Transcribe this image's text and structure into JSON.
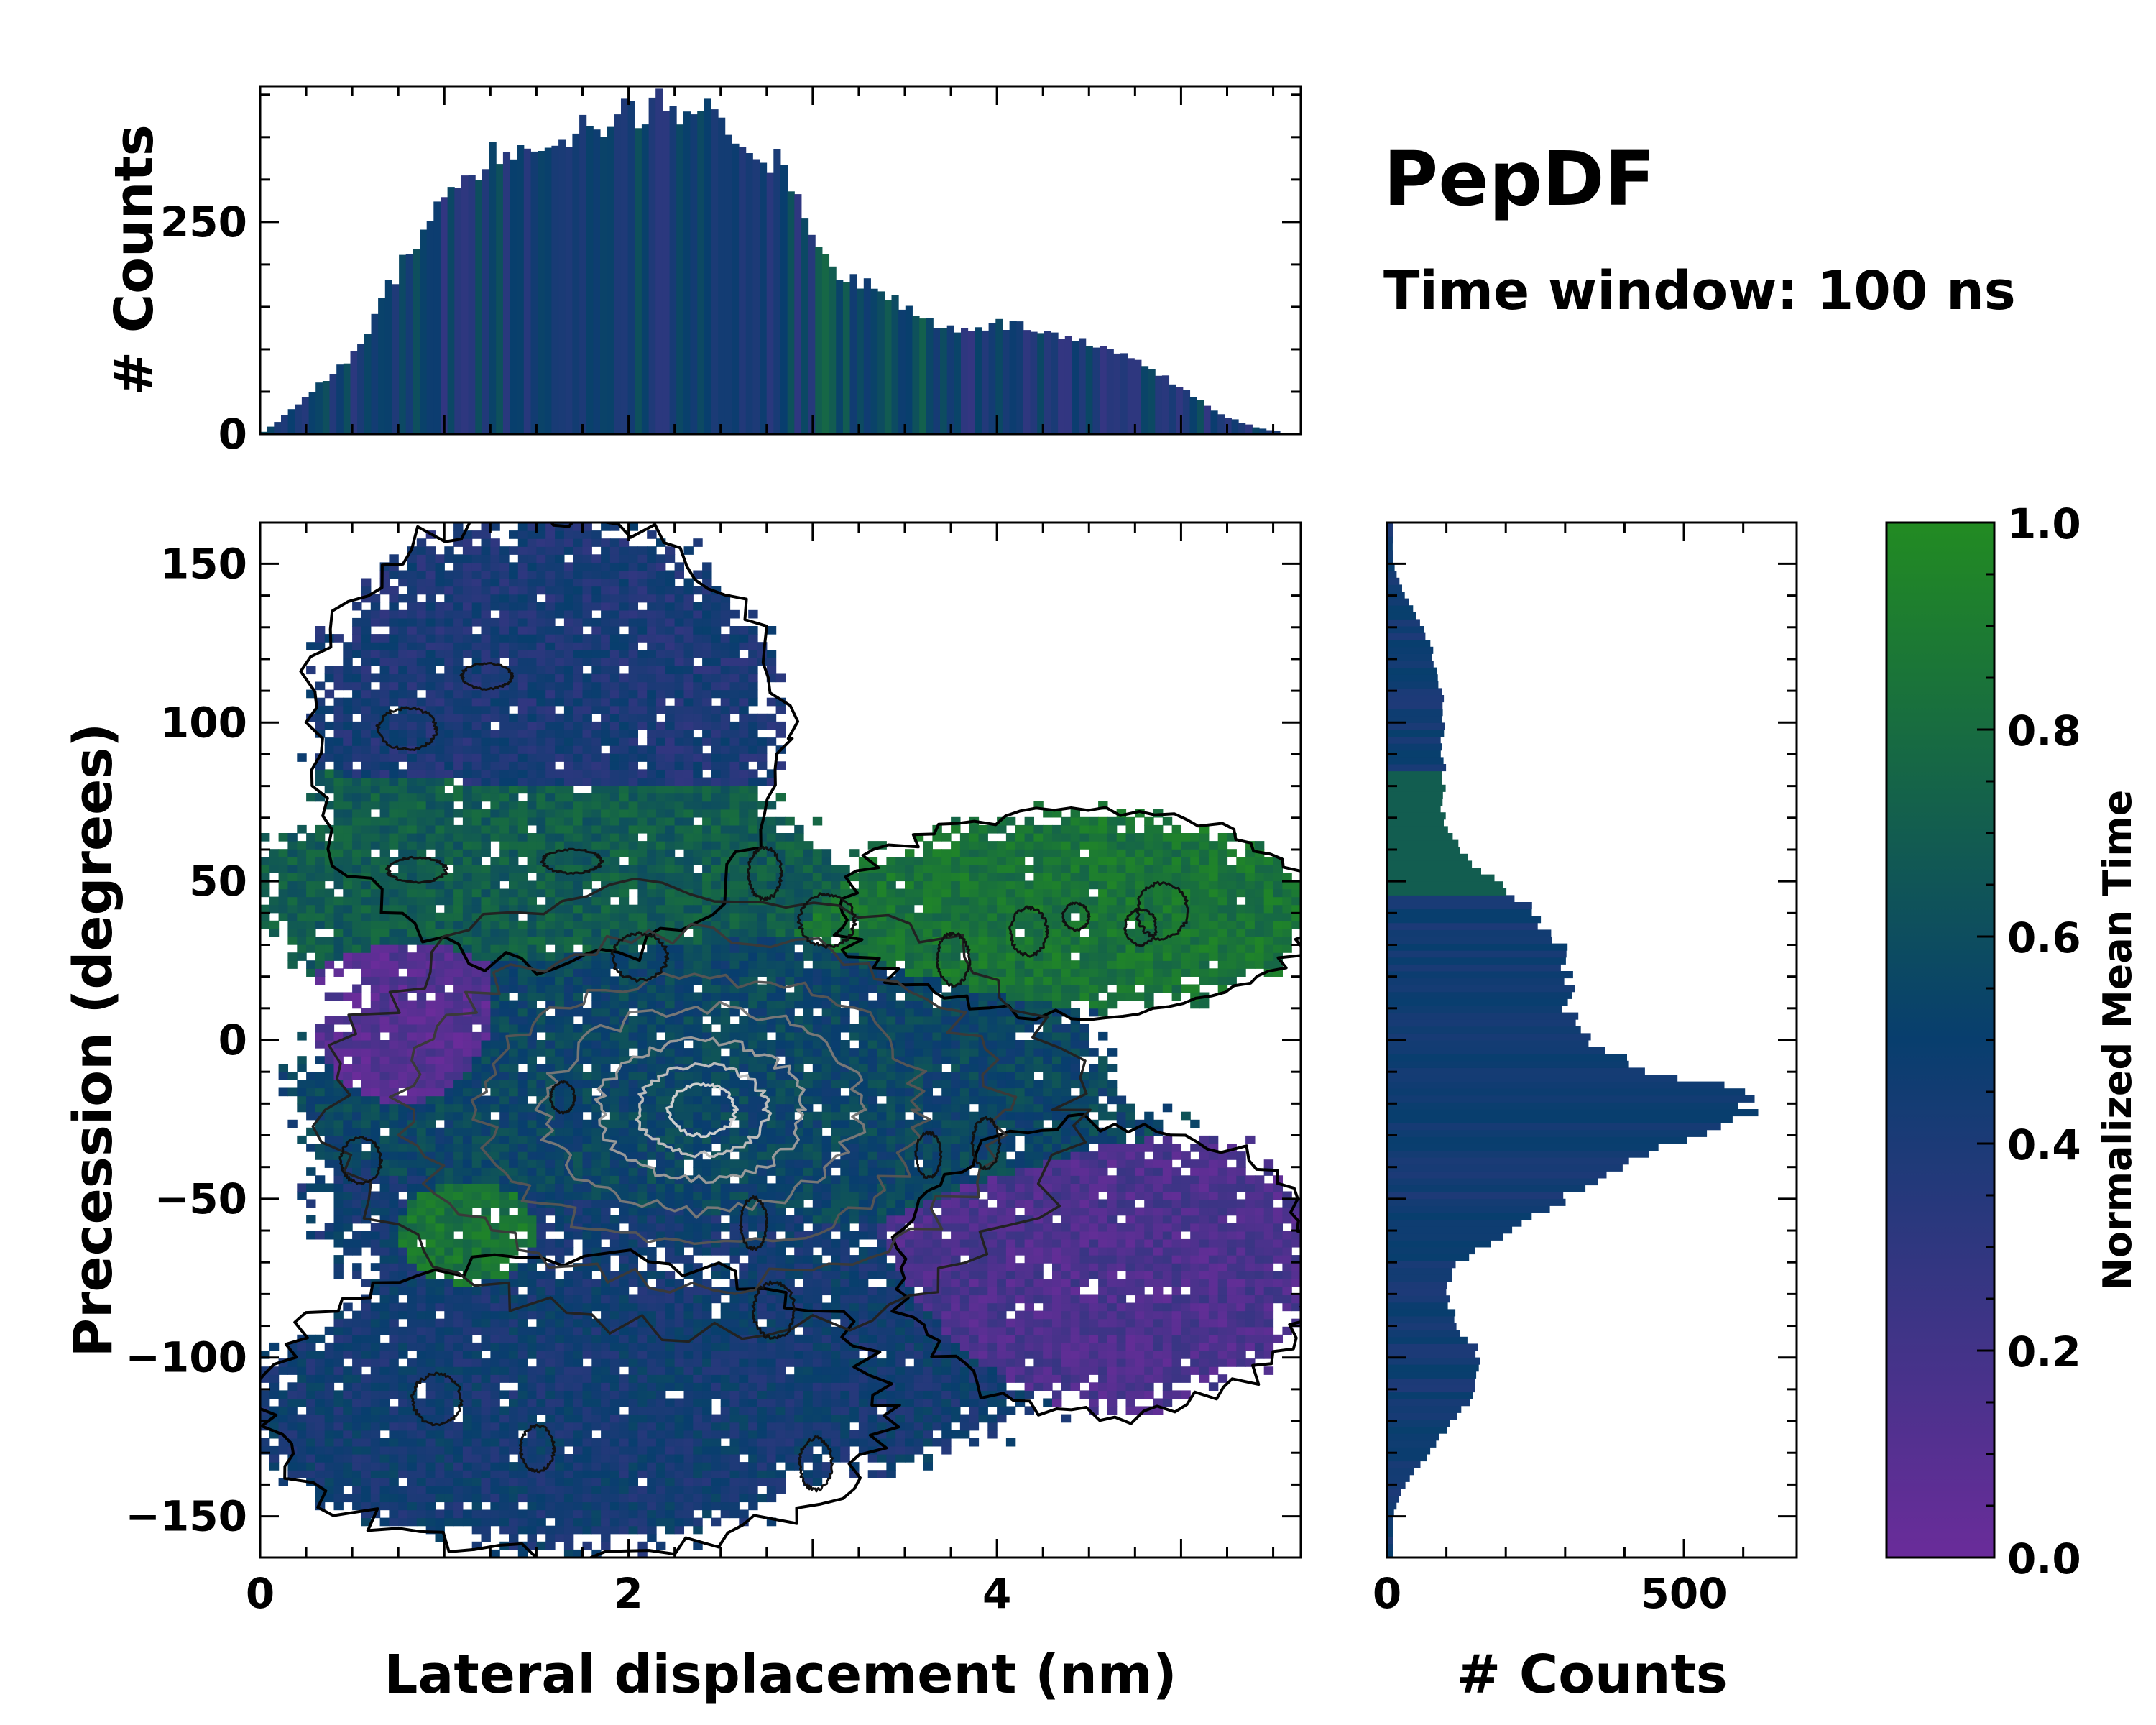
{
  "title": "PepDF",
  "subtitle": "Time window: 100 ns",
  "colors": {
    "low": "#6a2c9a",
    "mid": "#083e6e",
    "high": "#228b22",
    "contour_outer": "#000000",
    "contour_inner": "#cfcfcf"
  },
  "chart_data": [
    {
      "id": "top-histogram",
      "type": "bar",
      "title": "",
      "xlabel": "",
      "ylabel": "# Counts",
      "xlim": [
        0,
        5.65
      ],
      "ylim": [
        0,
        410
      ],
      "yticks": [
        0,
        250
      ],
      "ytick_labels": [
        "0",
        "250"
      ],
      "bins": 150,
      "profile": {
        "x": [
          0.0,
          0.1,
          0.3,
          0.5,
          0.7,
          0.9,
          1.0,
          1.2,
          1.4,
          1.6,
          1.8,
          2.0,
          2.2,
          2.4,
          2.6,
          2.8,
          3.0,
          3.1,
          3.2,
          3.4,
          3.6,
          3.8,
          4.0,
          4.2,
          4.4,
          4.6,
          4.8,
          5.0,
          5.2,
          5.4,
          5.6
        ],
        "y": [
          0,
          15,
          55,
          90,
          175,
          245,
          280,
          320,
          345,
          350,
          365,
          375,
          390,
          380,
          355,
          320,
          240,
          200,
          185,
          165,
          135,
          125,
          130,
          125,
          110,
          100,
          80,
          55,
          25,
          8,
          0
        ]
      },
      "color_by": "normalized mean time"
    },
    {
      "id": "main-heatmap",
      "type": "heatmap",
      "title": "",
      "xlabel": "Lateral displacement (nm)",
      "ylabel": "Precession (degrees)",
      "xlim": [
        0,
        5.65
      ],
      "ylim": [
        -163,
        163
      ],
      "xticks": [
        0,
        2,
        4
      ],
      "xtick_labels": [
        "0",
        "2",
        "4"
      ],
      "yticks": [
        -150,
        -100,
        -50,
        0,
        50,
        100,
        150
      ],
      "ytick_labels": [
        "−150",
        "−100",
        "−50",
        "0",
        "50",
        "100",
        "150"
      ],
      "grid": false,
      "regions_normalized_mean_time": [
        {
          "name": "upper",
          "x_range": [
            0.5,
            3.0
          ],
          "y_range": [
            80,
            160
          ],
          "value": 0.4
        },
        {
          "name": "upper-band",
          "x_range": [
            0.0,
            3.0
          ],
          "y_range": [
            35,
            80
          ],
          "value": 0.7
        },
        {
          "name": "right-lobe",
          "x_range": [
            3.3,
            5.6
          ],
          "y_range": [
            15,
            70
          ],
          "value": 0.85
        },
        {
          "name": "left-pocket",
          "x_range": [
            0.5,
            1.2
          ],
          "y_range": [
            -15,
            25
          ],
          "value": 0.1
        },
        {
          "name": "core",
          "x_range": [
            1.2,
            4.5
          ],
          "y_range": [
            -50,
            20
          ],
          "value": 0.55
        },
        {
          "name": "lower-right",
          "x_range": [
            3.5,
            5.6
          ],
          "y_range": [
            -110,
            -40
          ],
          "value": 0.15
        },
        {
          "name": "lower-green",
          "x_range": [
            0.8,
            1.5
          ],
          "y_range": [
            -80,
            -50
          ],
          "value": 0.85
        },
        {
          "name": "bottom",
          "x_range": [
            0.0,
            4.0
          ],
          "y_range": [
            -155,
            -60
          ],
          "value": 0.45
        }
      ],
      "density_peak": {
        "x": 2.4,
        "y": -22
      },
      "contours": "density contours from black (outer) to light grey (peak)"
    },
    {
      "id": "right-histogram",
      "type": "bar",
      "orientation": "horizontal",
      "title": "",
      "xlabel": "# Counts",
      "ylabel": "",
      "xlim": [
        0,
        690
      ],
      "ylim": [
        -163,
        163
      ],
      "xticks": [
        0,
        500
      ],
      "xtick_labels": [
        "0",
        "500"
      ],
      "bins": 150,
      "profile": {
        "y": [
          -150,
          -140,
          -130,
          -120,
          -110,
          -100,
          -90,
          -80,
          -70,
          -60,
          -50,
          -40,
          -30,
          -25,
          -20,
          -15,
          -10,
          0,
          10,
          20,
          30,
          40,
          50,
          60,
          70,
          80,
          90,
          100,
          110,
          120,
          130,
          140,
          150
        ],
        "x": [
          10,
          30,
          70,
          110,
          150,
          160,
          120,
          100,
          120,
          210,
          300,
          400,
          520,
          590,
          620,
          570,
          460,
          330,
          310,
          300,
          290,
          250,
          180,
          120,
          95,
          95,
          95,
          95,
          90,
          80,
          60,
          30,
          10
        ]
      },
      "color_by": "normalized mean time"
    },
    {
      "id": "colorbar",
      "type": "heatmap",
      "title": "",
      "ylabel": "Normalized Mean Time",
      "ylim": [
        0.0,
        1.0
      ],
      "yticks": [
        0.0,
        0.2,
        0.4,
        0.6,
        0.8,
        1.0
      ],
      "ytick_labels": [
        "0.0",
        "0.2",
        "0.4",
        "0.6",
        "0.8",
        "1.0"
      ],
      "stops": [
        0.0,
        0.5,
        1.0
      ]
    }
  ]
}
